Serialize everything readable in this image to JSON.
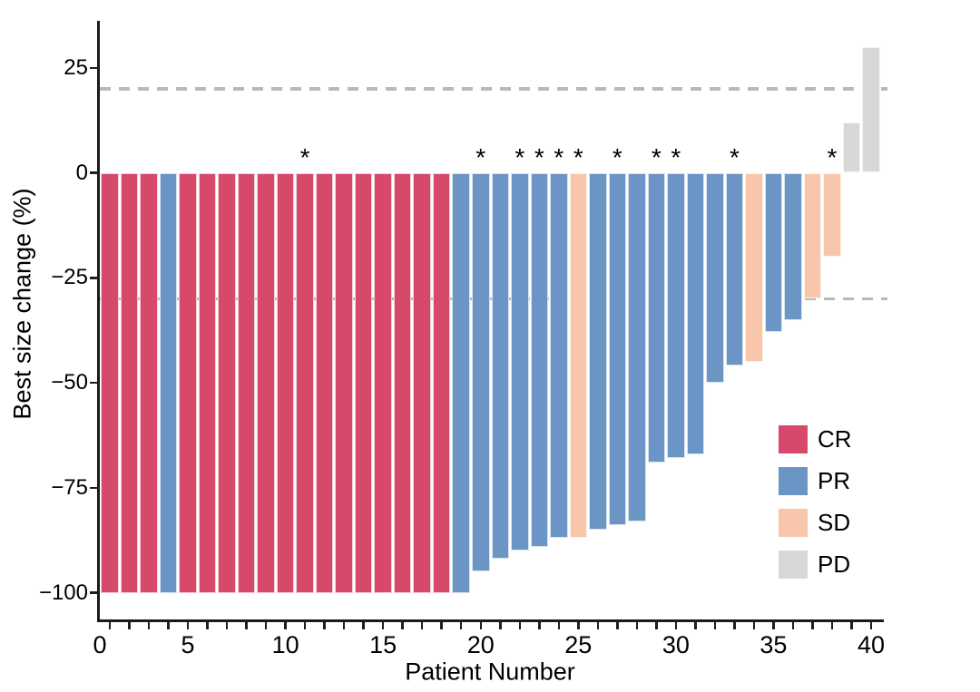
{
  "figure": {
    "xlabel": "Patient Number",
    "ylabel": "Best size change (%)",
    "star_symbol": "*"
  },
  "legend": [
    {
      "label": "CR",
      "color": "#d6496b"
    },
    {
      "label": "PR",
      "color": "#6a95c5"
    },
    {
      "label": "SD",
      "color": "#f7c6ab"
    },
    {
      "label": "PD",
      "color": "#d8d8d8"
    }
  ],
  "chart_data": {
    "type": "bar",
    "title": "",
    "xlabel": "Patient Number",
    "ylabel": "Best size change (%)",
    "x": [
      1,
      2,
      3,
      4,
      5,
      6,
      7,
      8,
      9,
      10,
      11,
      12,
      13,
      14,
      15,
      16,
      17,
      18,
      19,
      20,
      21,
      22,
      23,
      24,
      25,
      26,
      27,
      28,
      29,
      30,
      31,
      32,
      33,
      34,
      35,
      36,
      37,
      38,
      39,
      40
    ],
    "values": [
      -100,
      -100,
      -100,
      -100,
      -100,
      -100,
      -100,
      -100,
      -100,
      -100,
      -100,
      -100,
      -100,
      -100,
      -100,
      -100,
      -100,
      -100,
      -100,
      -95,
      -92,
      -90,
      -89,
      -87,
      -87,
      -85,
      -84,
      -83,
      -69,
      -68,
      -67,
      -50,
      -46,
      -45,
      -38,
      -35,
      -30,
      -20,
      12,
      30
    ],
    "groups": [
      "CR",
      "CR",
      "CR",
      "PR",
      "CR",
      "CR",
      "CR",
      "CR",
      "CR",
      "CR",
      "CR",
      "CR",
      "CR",
      "CR",
      "CR",
      "CR",
      "CR",
      "CR",
      "PR",
      "PR",
      "PR",
      "PR",
      "PR",
      "PR",
      "SD",
      "PR",
      "PR",
      "PR",
      "PR",
      "PR",
      "PR",
      "PR",
      "PR",
      "SD",
      "PR",
      "PR",
      "SD",
      "SD",
      "PD",
      "PD"
    ],
    "starred_patients": [
      11,
      20,
      22,
      23,
      24,
      25,
      27,
      29,
      30,
      33,
      38
    ],
    "reference_lines": [
      20,
      -30
    ],
    "x_ticks": [
      0,
      5,
      10,
      15,
      20,
      25,
      30,
      35,
      40
    ],
    "x_minor_ticks_every": 1,
    "y_ticks": [
      {
        "value": 25,
        "label": "25"
      },
      {
        "value": 0,
        "label": "0"
      },
      {
        "value": -25,
        "label": "−25"
      },
      {
        "value": -50,
        "label": "−50"
      },
      {
        "value": -75,
        "label": "−75"
      },
      {
        "value": -100,
        "label": "−100"
      }
    ],
    "ylim": [
      -106,
      36
    ],
    "grid": false,
    "legend_position": "inside-right",
    "colors": {
      "CR": "#d6496b",
      "PR": "#6a95c5",
      "SD": "#f7c6ab",
      "PD": "#d8d8d8",
      "reference_line": "#b9b9b9",
      "axis": "#1a1a1a"
    }
  }
}
